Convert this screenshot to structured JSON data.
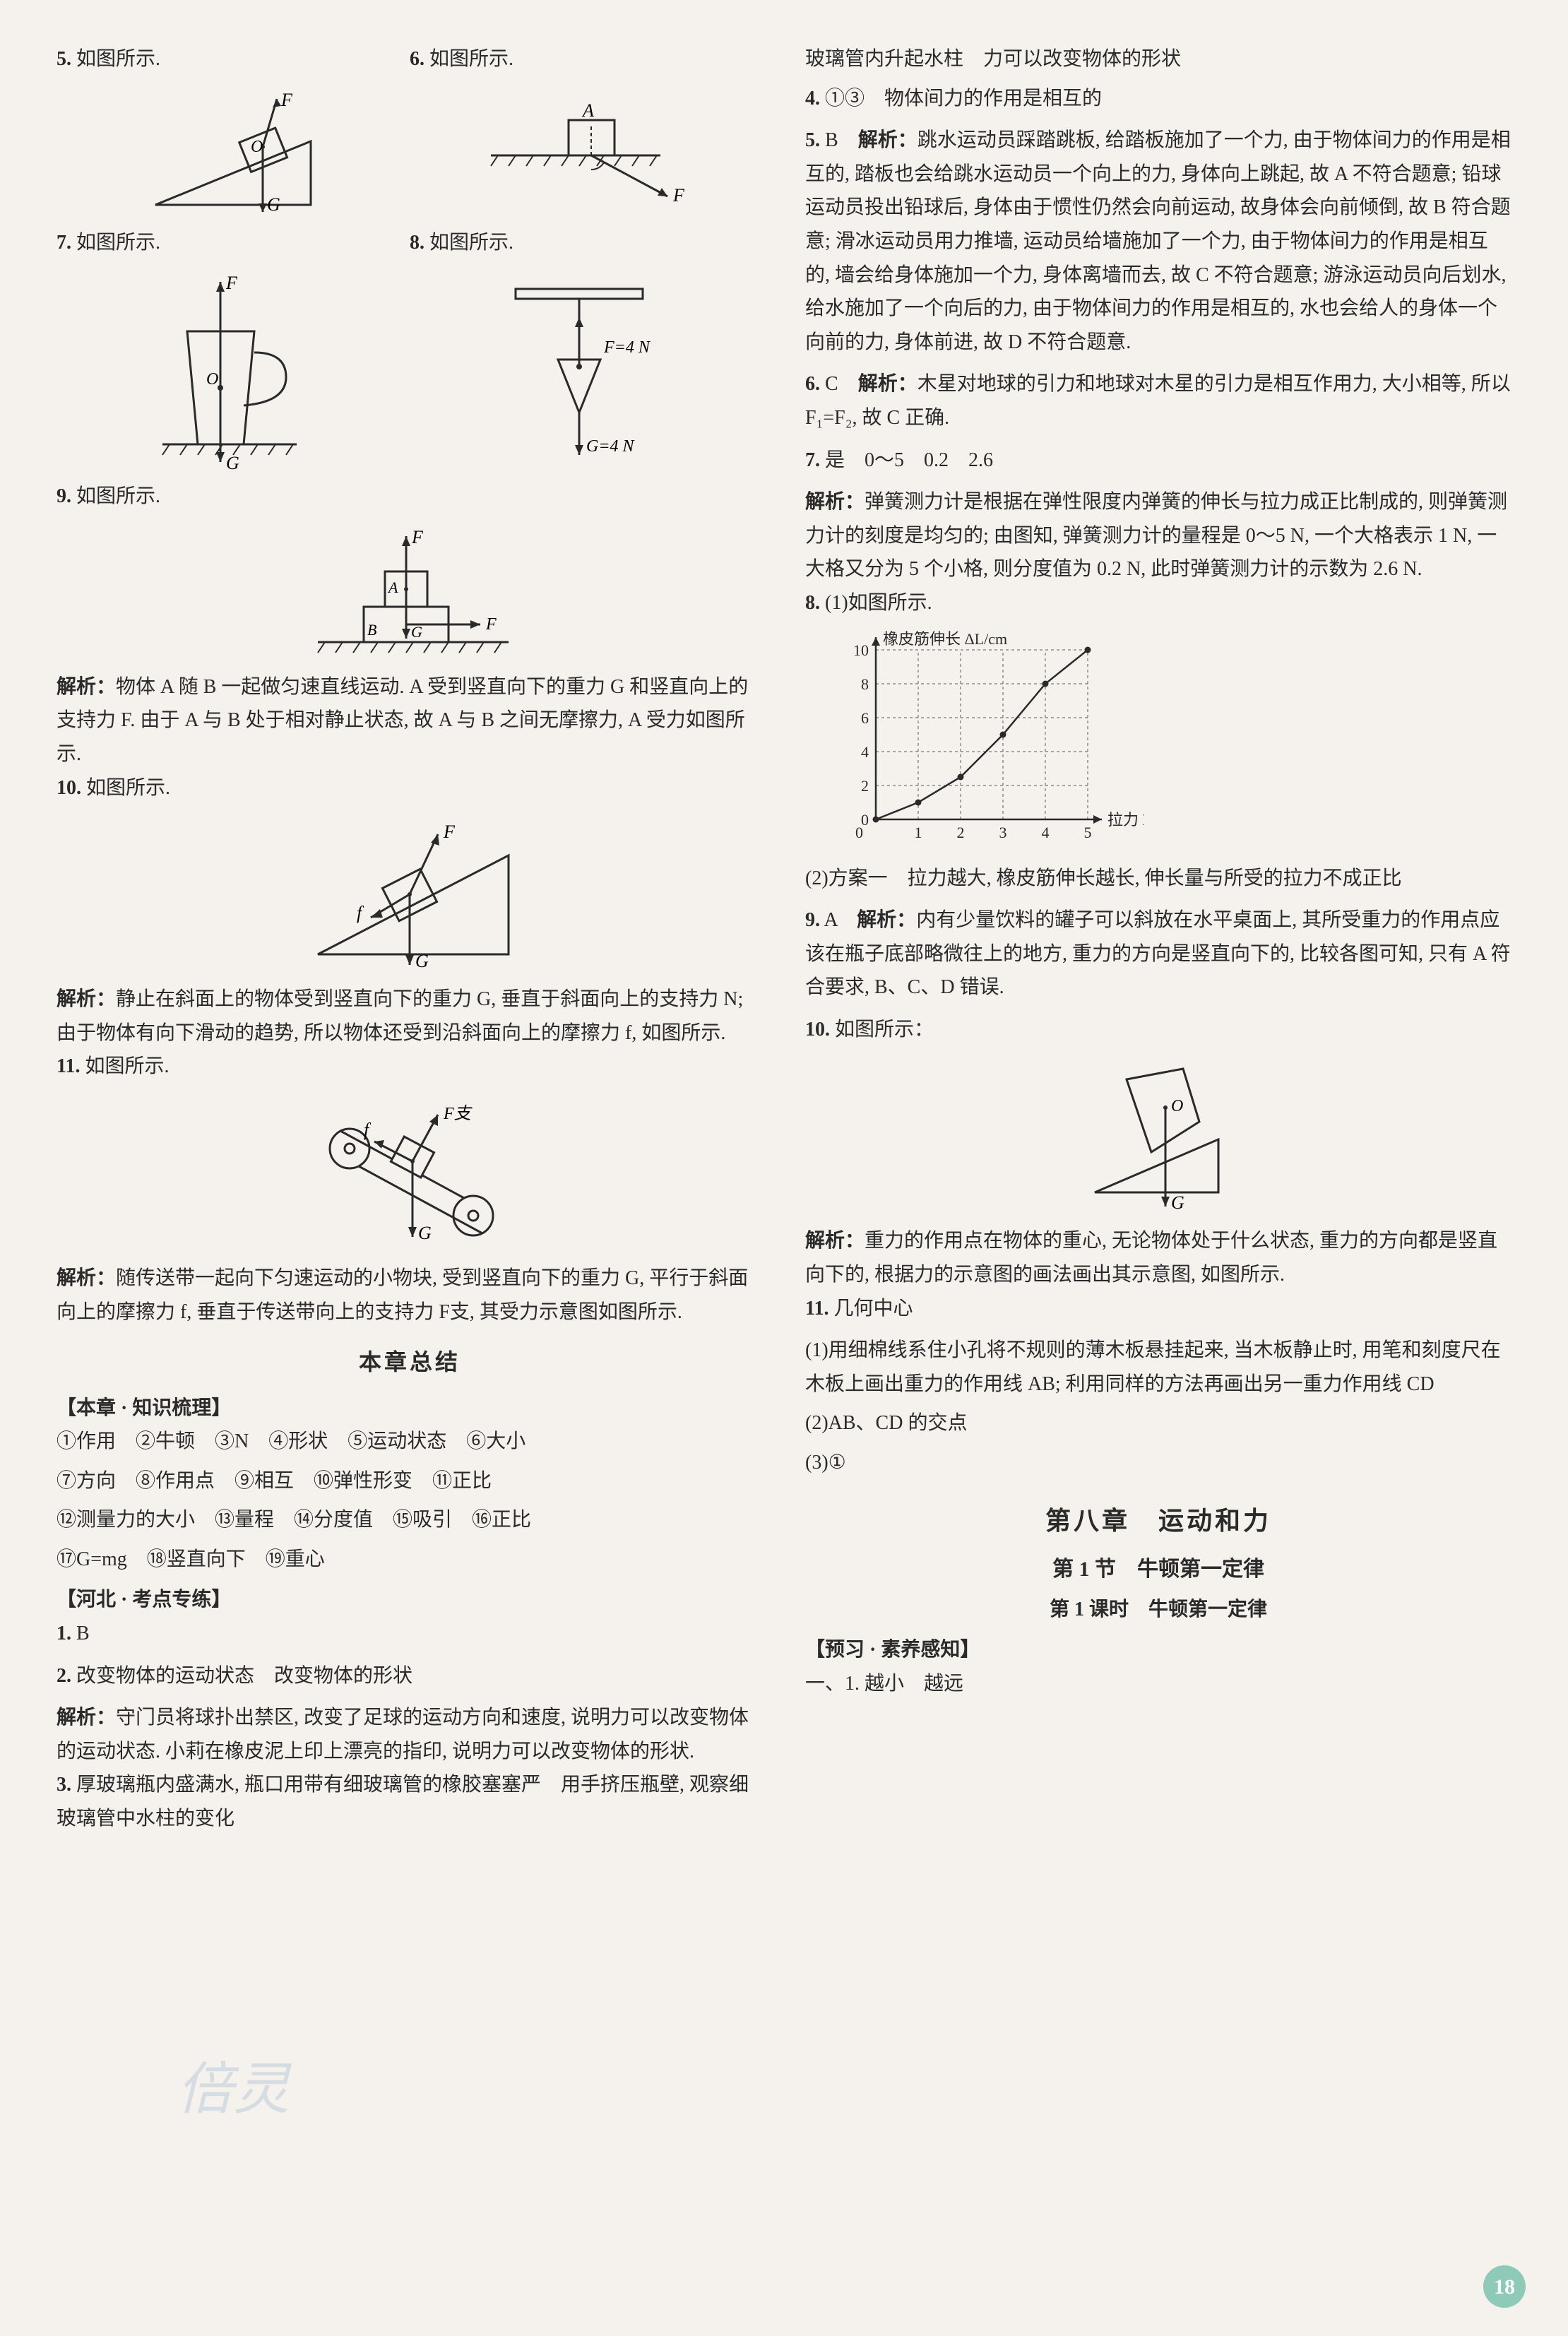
{
  "left": {
    "q5": {
      "label": "5.",
      "text": "如图所示."
    },
    "q6": {
      "label": "6.",
      "text": "如图所示."
    },
    "q7": {
      "label": "7.",
      "text": "如图所示."
    },
    "q8": {
      "label": "8.",
      "text": "如图所示."
    },
    "q9": {
      "label": "9.",
      "text": "如图所示."
    },
    "explain9": {
      "label": "解析：",
      "text": "物体 A 随 B 一起做匀速直线运动. A 受到竖直向下的重力 G 和竖直向上的支持力 F. 由于 A 与 B 处于相对静止状态, 故 A 与 B 之间无摩擦力, A 受力如图所示."
    },
    "q10": {
      "label": "10.",
      "text": "如图所示."
    },
    "explain10": {
      "label": "解析：",
      "text": "静止在斜面上的物体受到竖直向下的重力 G, 垂直于斜面向上的支持力 N; 由于物体有向下滑动的趋势, 所以物体还受到沿斜面向上的摩擦力 f, 如图所示."
    },
    "q11": {
      "label": "11.",
      "text": "如图所示."
    },
    "explain11": {
      "label": "解析：",
      "text": "随传送带一起向下匀速运动的小物块, 受到竖直向下的重力 G, 平行于斜面向上的摩擦力 f, 垂直于传送带向上的支持力 F支, 其受力示意图如图所示."
    },
    "summary_title": "本章总结",
    "knowledge_title": "【本章 · 知识梳理】",
    "knowledge_line1": "①作用　②牛顿　③N　④形状　⑤运动状态　⑥大小",
    "knowledge_line2": "⑦方向　⑧作用点　⑨相互　⑩弹性形变　⑪正比",
    "knowledge_line3": "⑫测量力的大小　⑬量程　⑭分度值　⑮吸引　⑯正比",
    "knowledge_line4": "⑰G=mg　⑱竖直向下　⑲重心",
    "hebei_title": "【河北 · 考点专练】",
    "h1": {
      "label": "1.",
      "text": "B"
    },
    "h2": {
      "label": "2.",
      "text": "改变物体的运动状态　改变物体的形状"
    },
    "h2_explain": {
      "label": "解析：",
      "text": "守门员将球扑出禁区, 改变了足球的运动方向和速度, 说明力可以改变物体的运动状态. 小莉在橡皮泥上印上漂亮的指印, 说明力可以改变物体的形状."
    },
    "h3": {
      "label": "3.",
      "text": "厚玻璃瓶内盛满水, 瓶口用带有细玻璃管的橡胶塞塞严　用手挤压瓶壁, 观察细玻璃管中水柱的变化"
    },
    "d5": {
      "F": "F",
      "G": "G",
      "O": "O"
    },
    "d6": {
      "A": "A",
      "F": "F"
    },
    "d7": {
      "F": "F",
      "G": "G",
      "O": "O"
    },
    "d8": {
      "F": "F=4 N",
      "G": "G=4 N"
    },
    "d9": {
      "F": "F",
      "A": "A",
      "B": "B",
      "G": "G",
      "Fr": "F"
    },
    "d10": {
      "F": "F",
      "G": "G",
      "f": "f"
    },
    "d11": {
      "F": "F支",
      "G": "G",
      "f": "f"
    }
  },
  "right": {
    "cont3": "玻璃管内升起水柱　力可以改变物体的形状",
    "q4": {
      "label": "4.",
      "text": "①③　物体间力的作用是相互的"
    },
    "q5": {
      "label": "5.",
      "answer": "B",
      "explain_label": "解析：",
      "text": "跳水运动员踩踏跳板, 给踏板施加了一个力, 由于物体间力的作用是相互的, 踏板也会给跳水运动员一个向上的力, 身体向上跳起, 故 A 不符合题意; 铅球运动员投出铅球后, 身体由于惯性仍然会向前运动, 故身体会向前倾倒, 故 B 符合题意; 滑冰运动员用力推墙, 运动员给墙施加了一个力, 由于物体间力的作用是相互的, 墙会给身体施加一个力, 身体离墙而去, 故 C 不符合题意; 游泳运动员向后划水, 给水施加了一个向后的力, 由于物体间力的作用是相互的, 水也会给人的身体一个向前的力, 身体前进, 故 D 不符合题意."
    },
    "q6": {
      "label": "6.",
      "answer": "C",
      "explain_label": "解析：",
      "text": "木星对地球的引力和地球对木星的引力是相互作用力, 大小相等, 所以 F₁=F₂, 故 C 正确."
    },
    "q7": {
      "label": "7.",
      "answer": "是　0～5　0.2　2.6",
      "explain_label": "解析：",
      "text": "弹簧测力计是根据在弹性限度内弹簧的伸长与拉力成正比制成的, 则弹簧测力计的刻度是均匀的; 由图知, 弹簧测力计的量程是 0～5 N, 一个大格表示 1 N, 一大格又分为 5 个小格, 则分度值为 0.2 N, 此时弹簧测力计的示数为 2.6 N."
    },
    "q8": {
      "label": "8.",
      "part1": "(1)如图所示.",
      "part2_label": "(2)方案一",
      "part2": "拉力越大, 橡皮筋伸长越长, 伸长量与所受的拉力不成正比"
    },
    "chart": {
      "ylabel": "橡皮筋伸长 ΔL/cm",
      "xlabel": "拉力 F/N",
      "x_values": [
        1,
        2,
        3,
        4,
        5
      ],
      "y_ticks": [
        0,
        2,
        4,
        6,
        8,
        10
      ],
      "points": [
        [
          0,
          0
        ],
        [
          1,
          1
        ],
        [
          2,
          2.5
        ],
        [
          3,
          5
        ],
        [
          4,
          8
        ],
        [
          5,
          10
        ]
      ],
      "axis_color": "#2a2a2a",
      "grid_color": "#5a5a5a",
      "point_color": "#2a2a2a",
      "background": "#f5f2ed",
      "xlim": [
        0,
        5
      ],
      "ylim": [
        0,
        10
      ]
    },
    "q9": {
      "label": "9.",
      "answer": "A",
      "explain_label": "解析：",
      "text": "内有少量饮料的罐子可以斜放在水平桌面上, 其所受重力的作用点应该在瓶子底部略微往上的地方, 重力的方向是竖直向下的, 比较各图可知, 只有 A 符合要求, B、C、D 错误."
    },
    "q10": {
      "label": "10.",
      "text": "如图所示：",
      "explain_label": "解析：",
      "explain": "重力的作用点在物体的重心, 无论物体处于什么状态, 重力的方向都是竖直向下的, 根据力的示意图的画法画出其示意图, 如图所示."
    },
    "d10r": {
      "O": "O",
      "G": "G"
    },
    "q11": {
      "label": "11.",
      "answer": "几何中心",
      "part1": "(1)用细棉线系住小孔将不规则的薄木板悬挂起来, 当木板静止时, 用笔和刻度尺在木板上画出重力的作用线 AB; 利用同样的方法再画出另一重力作用线 CD",
      "part2": "(2)AB、CD 的交点",
      "part3": "(3)①"
    },
    "chapter": "第八章　运动和力",
    "section": "第 1 节　牛顿第一定律",
    "lesson": "第 1 课时　牛顿第一定律",
    "preview_title": "【预习 · 素养感知】",
    "preview1": "一、1. 越小　越远"
  },
  "page_num": "18"
}
